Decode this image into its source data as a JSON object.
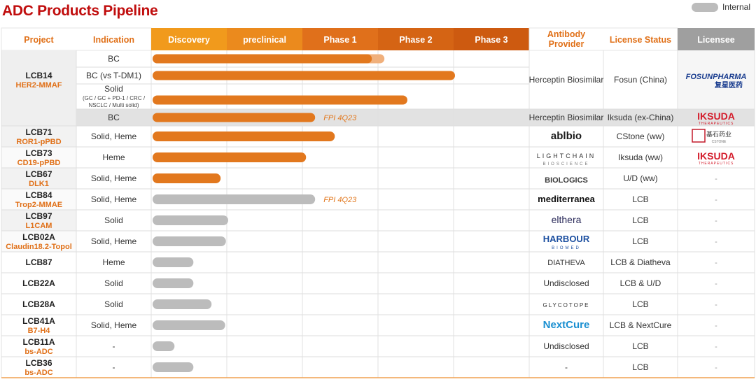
{
  "title": "ADC Products Pipeline",
  "legend_label": "Internal",
  "columns": {
    "project": "Project",
    "indication": "Indication",
    "phases": [
      "Discovery",
      "preclinical",
      "Phase 1",
      "Phase 2",
      "Phase 3"
    ],
    "antibody_provider": "Antibody Provider",
    "license_status": "License Status",
    "licensee": "Licensee"
  },
  "colors": {
    "header_orange": [
      "#f19a1c",
      "#eb8a1d",
      "#e0701b",
      "#d56414",
      "#cd5a10"
    ],
    "bar_orange": "#e2781e",
    "bar_gray": "#bcbcbc",
    "project_orange": "#e07018",
    "title_red": "#c00d0d"
  },
  "chart_data": {
    "type": "bar",
    "orientation": "horizontal",
    "stage_axis": [
      "Discovery",
      "preclinical",
      "Phase 1",
      "Phase 2",
      "Phase 3"
    ],
    "xlim": [
      0,
      5
    ],
    "rows": [
      {
        "code": "LCB14",
        "target": "HER2-MMAF",
        "indication": "BC",
        "progress": 2.9,
        "progress_light": 2.9,
        "bar": "orange",
        "provider": "Herceptin Biosimilar",
        "license": "Fosun (China)",
        "licensee": "FOSUNPHARMA",
        "licensee_sub": "复星医药"
      },
      {
        "code": "",
        "target": "",
        "indication": "BC (vs T-DM1)",
        "progress": 4.0,
        "bar": "orange"
      },
      {
        "code": "",
        "target": "",
        "indication": "Solid",
        "indication_sub": "(GC / GC + PD-1 / CRC / NSCLC / Multi solid)",
        "progress": 3.37,
        "bar": "orange"
      },
      {
        "code": "",
        "target": "",
        "indication": "BC",
        "progress": 2.15,
        "bar": "orange",
        "note": "FPI 4Q23",
        "provider": "Herceptin Biosimilar",
        "license": "Iksuda (ex-China)",
        "licensee": "IKSUDA",
        "licensee_sub": "THERAPEUTICS"
      },
      {
        "code": "LCB71",
        "target": "ROR1-pPBD",
        "indication": "Solid, Heme",
        "progress": 2.41,
        "bar": "orange",
        "provider": "ablbio",
        "license": "CStone (ww)",
        "licensee": "基石药业",
        "licensee_sub": "CSTONE"
      },
      {
        "code": "LCB73",
        "target": "CD19-pPBD",
        "indication": "Heme",
        "progress": 2.03,
        "bar": "orange",
        "provider": "LIGHTCHAIN",
        "provider_sub": "BIOSCIENCE",
        "license": "Iksuda (ww)",
        "licensee": "IKSUDA",
        "licensee_sub": "THERAPEUTICS"
      },
      {
        "code": "LCB67",
        "target": "DLK1",
        "indication": "Solid, Heme",
        "progress": 0.9,
        "bar": "orange",
        "provider": "BIOLOGICS",
        "license": "U/D (ww)",
        "licensee": "-"
      },
      {
        "code": "LCB84",
        "target": "Trop2-MMAE",
        "indication": "Solid, Heme",
        "progress": 2.15,
        "bar": "gray",
        "note": "FPI 4Q23",
        "provider": "mediterranea",
        "license": "LCB",
        "licensee": "-"
      },
      {
        "code": "LCB97",
        "target": "L1CAM",
        "indication": "Solid",
        "progress": 1.0,
        "bar": "gray",
        "provider": "elthera",
        "license": "LCB",
        "licensee": "-"
      },
      {
        "code": "LCB02A",
        "target": "Claudin18.2-Topol",
        "indication": "Solid, Heme",
        "progress": 0.97,
        "bar": "gray",
        "provider": "HARBOUR",
        "provider_sub": "BIOMED",
        "license": "LCB",
        "licensee": "-"
      },
      {
        "code": "LCB87",
        "target": "",
        "indication": "Heme",
        "progress": 0.54,
        "bar": "gray",
        "provider": "DIATHEVA",
        "license": "LCB & Diatheva",
        "licensee": "-"
      },
      {
        "code": "LCB22A",
        "target": "",
        "indication": "Solid",
        "progress": 0.54,
        "bar": "gray",
        "provider": "Undisclosed",
        "license": "LCB & U/D",
        "licensee": "-"
      },
      {
        "code": "LCB28A",
        "target": "",
        "indication": "Solid",
        "progress": 0.78,
        "bar": "gray",
        "provider": "GLYCOTOPE",
        "license": "LCB",
        "licensee": "-"
      },
      {
        "code": "LCB41A",
        "target": "B7-H4",
        "indication": "Solid, Heme",
        "progress": 0.96,
        "bar": "gray",
        "provider": "NextCure",
        "license": "LCB & NextCure",
        "licensee": "-"
      },
      {
        "code": "LCB11A",
        "target": "bs-ADC",
        "indication": "-",
        "progress": 0.29,
        "bar": "gray",
        "provider": "Undisclosed",
        "license": "LCB",
        "licensee": "-"
      },
      {
        "code": "LCB36",
        "target": "bs-ADC",
        "indication": "-",
        "progress": 0.54,
        "bar": "gray",
        "provider": "-",
        "license": "LCB",
        "licensee": "-"
      }
    ]
  }
}
